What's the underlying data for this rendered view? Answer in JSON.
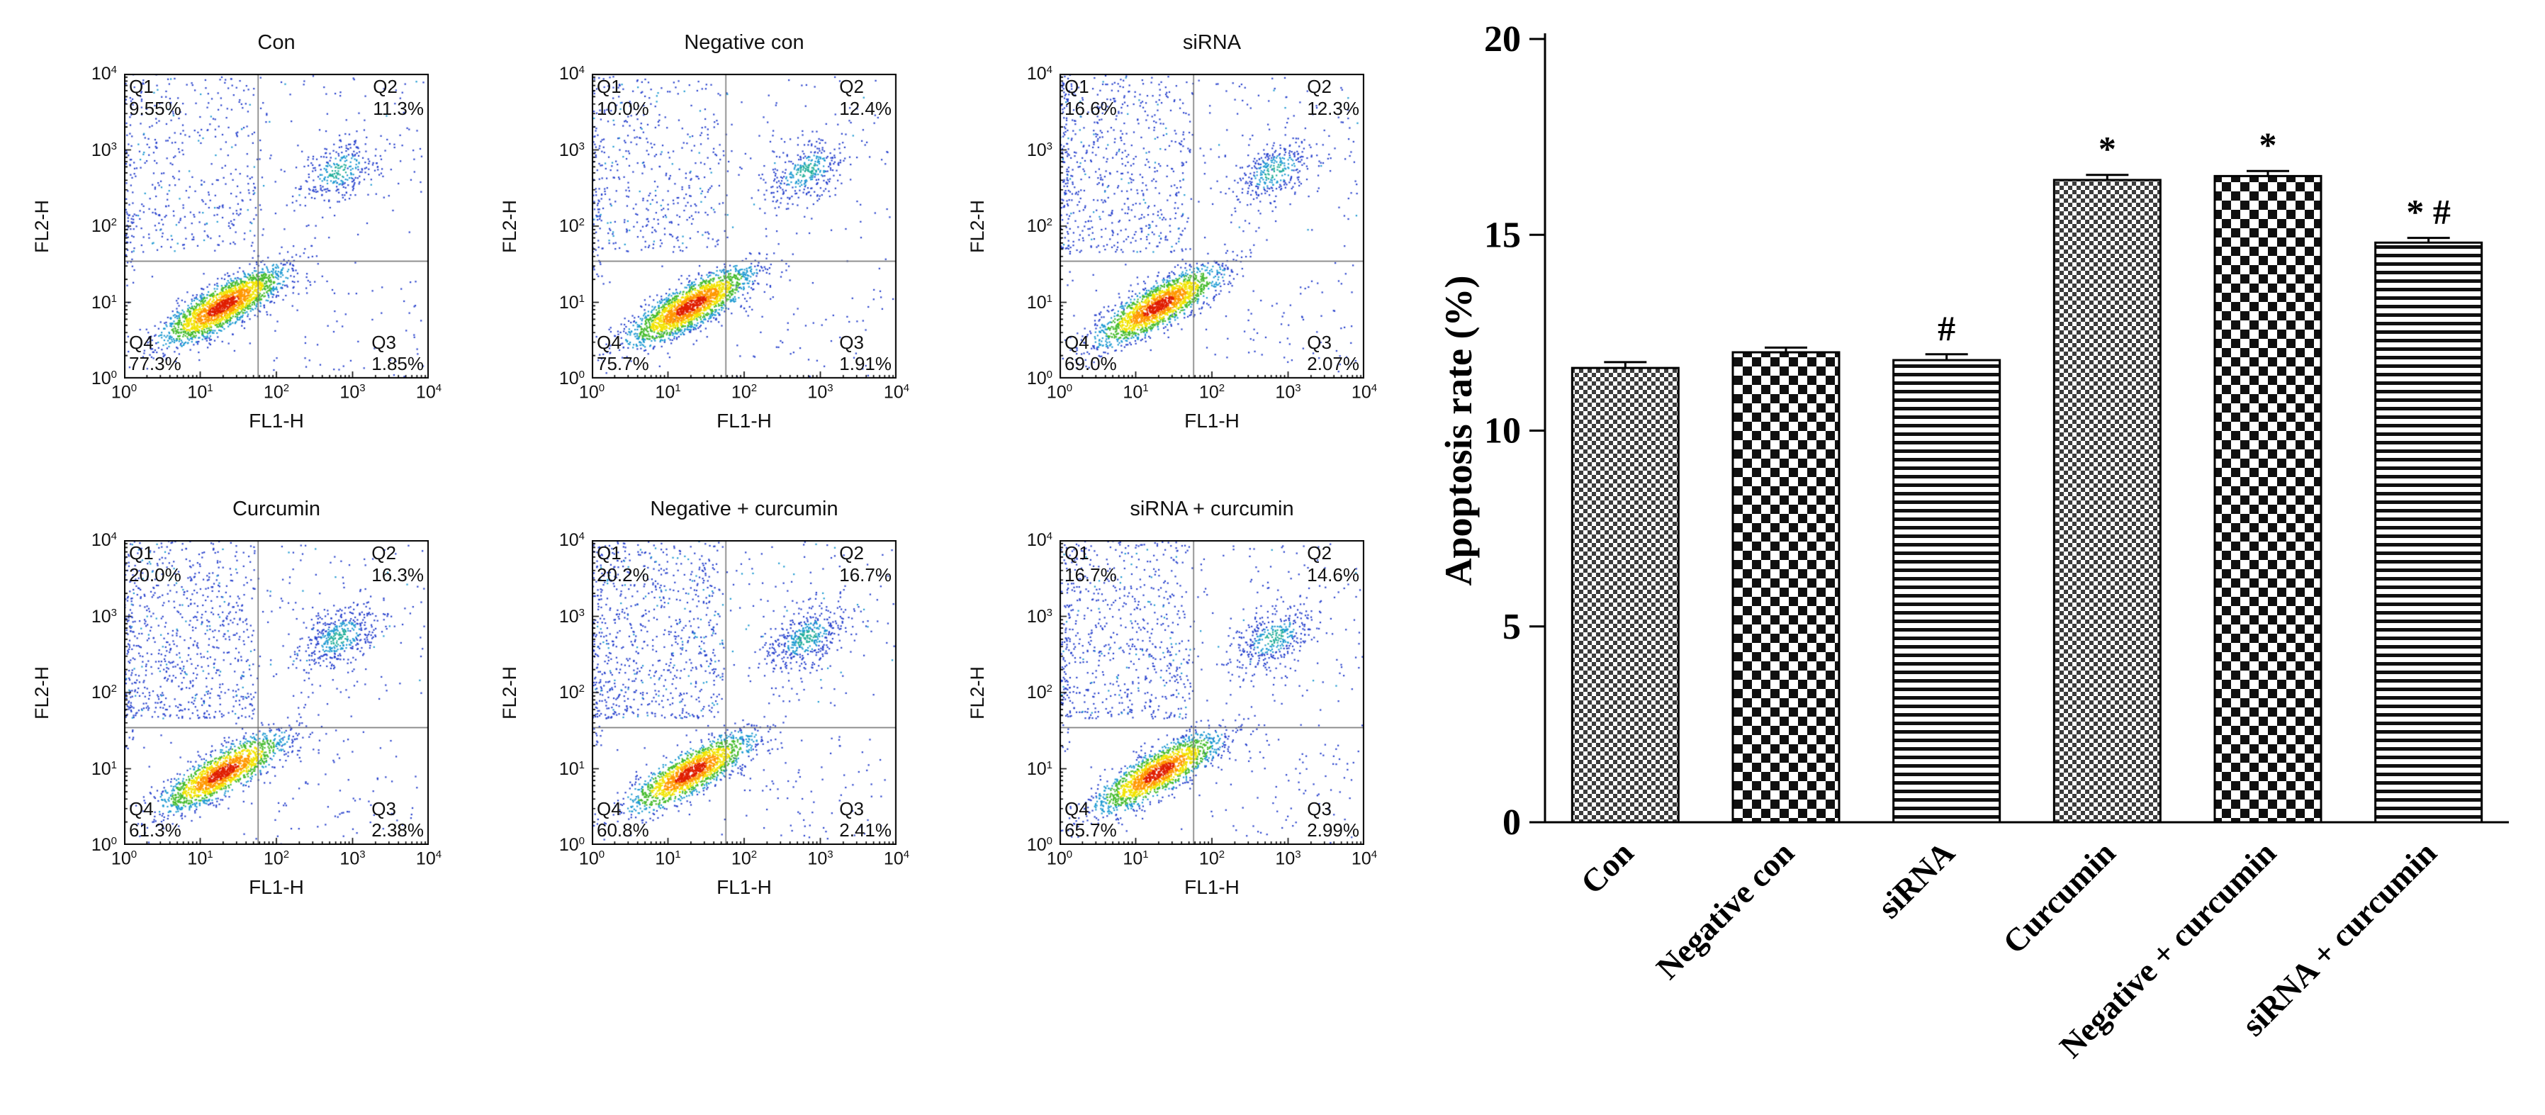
{
  "figure": {
    "background": "#ffffff"
  },
  "flow_axes": {
    "base": "10",
    "tick_exponents": [
      0,
      1,
      2,
      3,
      4
    ],
    "log_min": 0,
    "log_max": 4,
    "x_divider_log": 1.76,
    "y_divider_log": 1.54
  },
  "flow_style": {
    "palette": {
      "blue": "#2741cd",
      "light_blue": "#1d9ad2",
      "teal": "#1fae9a",
      "green": "#46bc2d",
      "yellow": "#f2e400",
      "orange": "#ff9800",
      "red": "#e01f00",
      "divider": "#6a6a6a",
      "border": "#000000"
    }
  },
  "flow_panels": [
    {
      "title": "Con",
      "xlabel": "FL1-H",
      "ylabel": "FL2-H",
      "seed": 11,
      "quadrants": {
        "q1": {
          "label": "Q1",
          "pct": "9.55%",
          "value": 9.55
        },
        "q2": {
          "label": "Q2",
          "pct": "11.3%",
          "value": 11.3
        },
        "q3": {
          "label": "Q3",
          "pct": "1.85%",
          "value": 1.85
        },
        "q4": {
          "label": "Q4",
          "pct": "77.3%",
          "value": 77.3
        }
      }
    },
    {
      "title": "Negative con",
      "xlabel": "FL1-H",
      "ylabel": "FL2-H",
      "seed": 23,
      "quadrants": {
        "q1": {
          "label": "Q1",
          "pct": "10.0%",
          "value": 10.0
        },
        "q2": {
          "label": "Q2",
          "pct": "12.4%",
          "value": 12.4
        },
        "q3": {
          "label": "Q3",
          "pct": "1.91%",
          "value": 1.91
        },
        "q4": {
          "label": "Q4",
          "pct": "75.7%",
          "value": 75.7
        }
      }
    },
    {
      "title": "siRNA",
      "xlabel": "FL1-H",
      "ylabel": "FL2-H",
      "seed": 37,
      "quadrants": {
        "q1": {
          "label": "Q1",
          "pct": "16.6%",
          "value": 16.6
        },
        "q2": {
          "label": "Q2",
          "pct": "12.3%",
          "value": 12.3
        },
        "q3": {
          "label": "Q3",
          "pct": "2.07%",
          "value": 2.07
        },
        "q4": {
          "label": "Q4",
          "pct": "69.0%",
          "value": 69.0
        }
      }
    },
    {
      "title": "Curcumin",
      "xlabel": "FL1-H",
      "ylabel": "FL2-H",
      "seed": 53,
      "quadrants": {
        "q1": {
          "label": "Q1",
          "pct": "20.0%",
          "value": 20.0
        },
        "q2": {
          "label": "Q2",
          "pct": "16.3%",
          "value": 16.3
        },
        "q3": {
          "label": "Q3",
          "pct": "2.38%",
          "value": 2.38
        },
        "q4": {
          "label": "Q4",
          "pct": "61.3%",
          "value": 61.3
        }
      }
    },
    {
      "title": "Negative + curcumin",
      "xlabel": "FL1-H",
      "ylabel": "FL2-H",
      "seed": 71,
      "quadrants": {
        "q1": {
          "label": "Q1",
          "pct": "20.2%",
          "value": 20.2
        },
        "q2": {
          "label": "Q2",
          "pct": "16.7%",
          "value": 16.7
        },
        "q3": {
          "label": "Q3",
          "pct": "2.41%",
          "value": 2.41
        },
        "q4": {
          "label": "Q4",
          "pct": "60.8%",
          "value": 60.8
        }
      }
    },
    {
      "title": "siRNA + curcumin",
      "xlabel": "FL1-H",
      "ylabel": "FL2-H",
      "seed": 89,
      "quadrants": {
        "q1": {
          "label": "Q1",
          "pct": "16.7%",
          "value": 16.7
        },
        "q2": {
          "label": "Q2",
          "pct": "14.6%",
          "value": 14.6
        },
        "q3": {
          "label": "Q3",
          "pct": "2.99%",
          "value": 2.99
        },
        "q4": {
          "label": "Q4",
          "pct": "65.7%",
          "value": 65.7
        }
      }
    }
  ],
  "chart_data": {
    "type": "bar",
    "title": "",
    "xlabel": "",
    "ylabel": "Apoptosis rate (%)",
    "ylim": [
      0,
      20
    ],
    "yticks": [
      0,
      5,
      10,
      15,
      20
    ],
    "categories": [
      "Con",
      "Negative con",
      "siRNA",
      "Curcumin",
      "Negative + curcumin",
      "siRNA + curcumin"
    ],
    "values": [
      11.6,
      12.0,
      11.8,
      16.4,
      16.5,
      14.8
    ],
    "errors": [
      0.15,
      0.12,
      0.15,
      0.13,
      0.13,
      0.12
    ],
    "annotations": [
      "",
      "",
      "#",
      "*",
      "*",
      "* #"
    ],
    "patterns": [
      "fine-check",
      "big-check",
      "h-lines",
      "fine-check",
      "big-check",
      "h-lines"
    ],
    "bar_outline": "#000000",
    "grid": "off",
    "legend": "none"
  }
}
